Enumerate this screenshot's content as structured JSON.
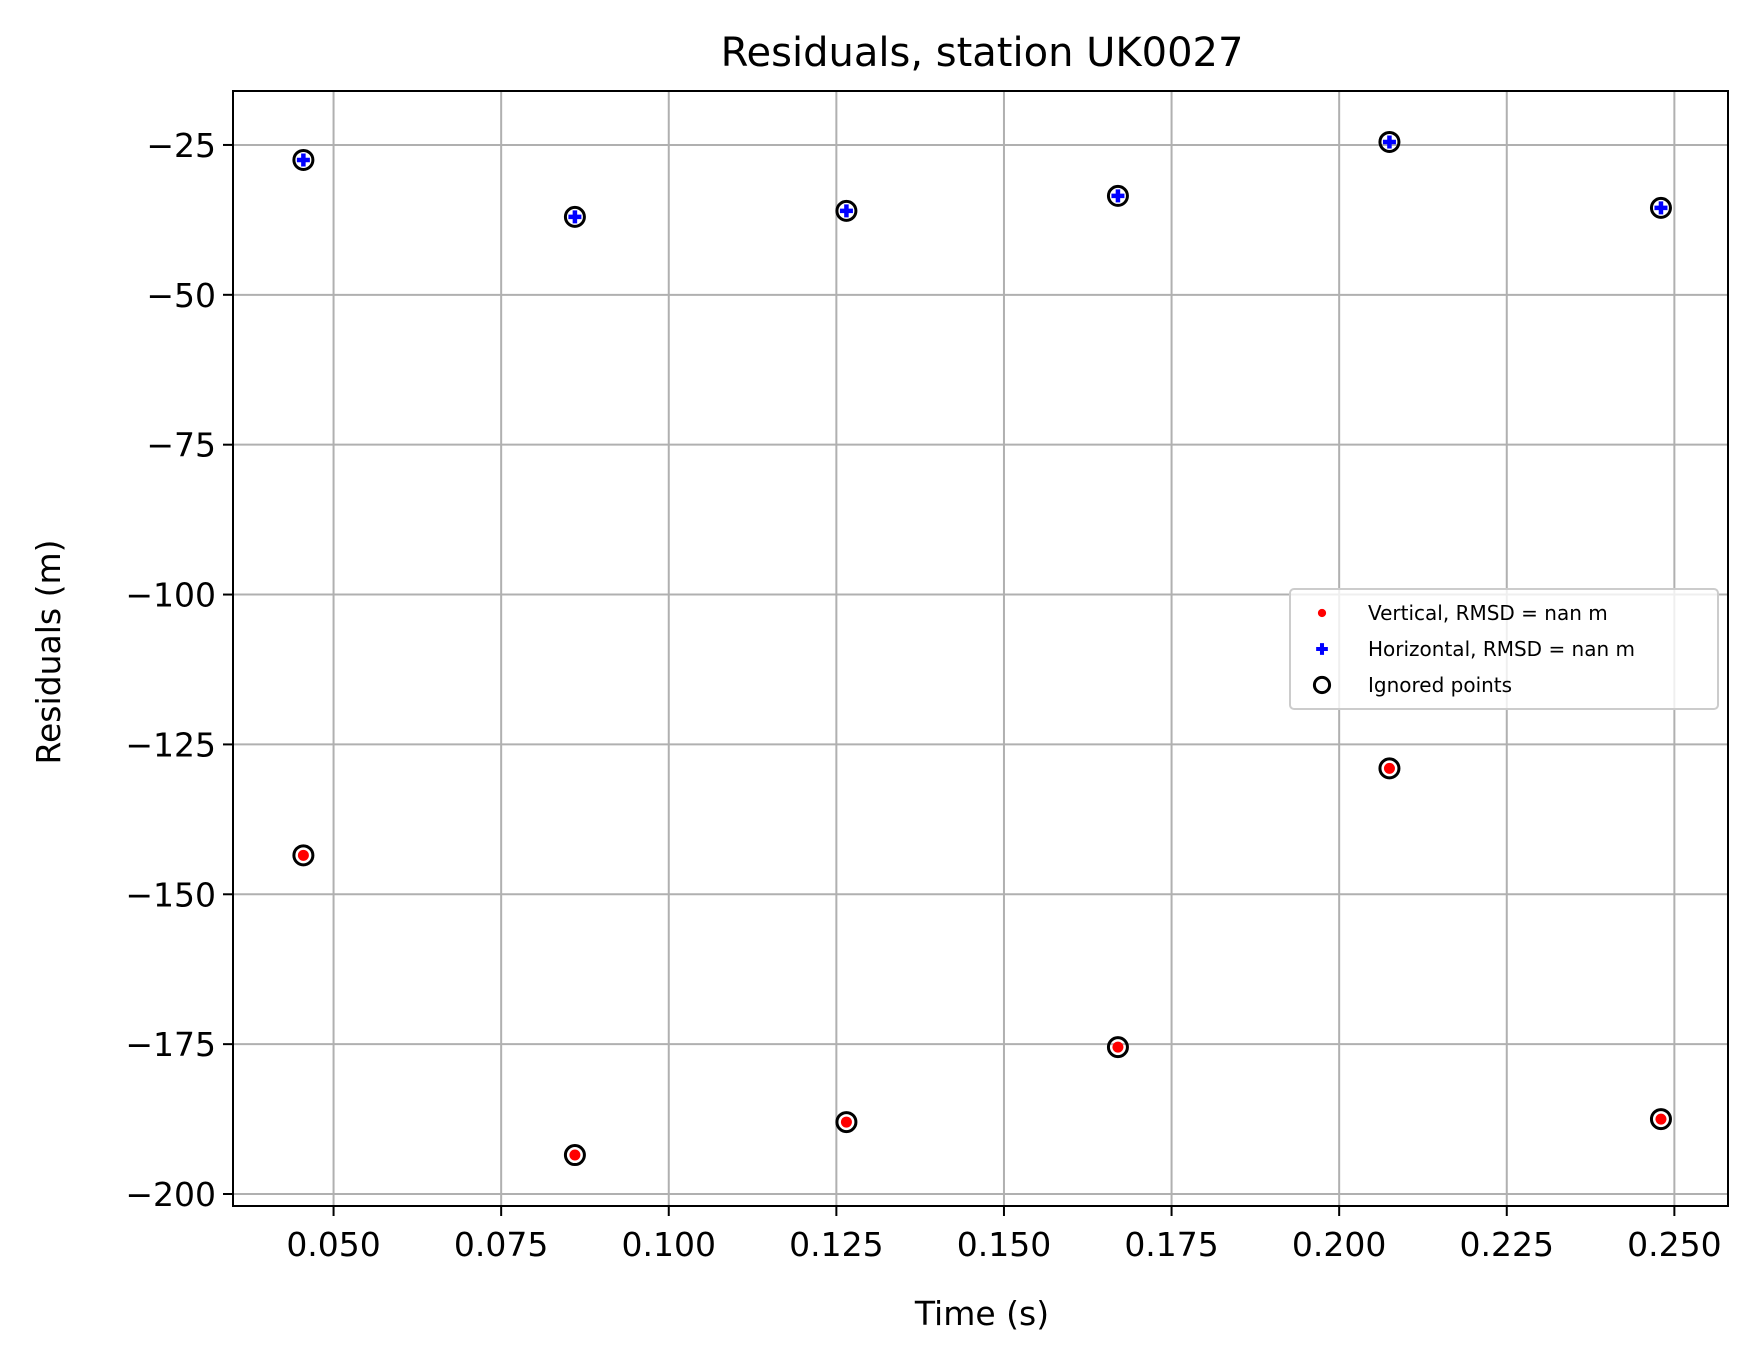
{
  "chart_data": {
    "type": "scatter",
    "title": "Residuals, station UK0027",
    "xlabel": "Time (s)",
    "ylabel": "Residuals (m)",
    "xlim": [
      0.035,
      0.258
    ],
    "ylim": [
      -202,
      -16
    ],
    "xticks": [
      0.05,
      0.075,
      0.1,
      0.125,
      0.15,
      0.175,
      0.2,
      0.225,
      0.25
    ],
    "xtick_labels": [
      "0.050",
      "0.075",
      "0.100",
      "0.125",
      "0.150",
      "0.175",
      "0.200",
      "0.225",
      "0.250"
    ],
    "yticks": [
      -25,
      -50,
      -75,
      -100,
      -125,
      -150,
      -175,
      -200
    ],
    "ytick_labels": [
      "−25",
      "−50",
      "−75",
      "−100",
      "−125",
      "−150",
      "−175",
      "−200"
    ],
    "grid": true,
    "legend_position": "center-right",
    "series": [
      {
        "name": "Vertical, RMSD = nan m",
        "marker": "dot",
        "color": "#ff0000",
        "x": [
          0.0455,
          0.086,
          0.1265,
          0.167,
          0.2075,
          0.248
        ],
        "y": [
          -143.5,
          -193.5,
          -188,
          -175.5,
          -129,
          -187.5
        ]
      },
      {
        "name": "Horizontal, RMSD = nan m",
        "marker": "plus",
        "color": "#0000ff",
        "x": [
          0.0455,
          0.086,
          0.1265,
          0.167,
          0.2075,
          0.248
        ],
        "y": [
          -27.5,
          -37,
          -36,
          -33.5,
          -24.5,
          -35.5
        ]
      },
      {
        "name": "Ignored points",
        "marker": "open-circle",
        "color": "#000000",
        "x": [
          0.0455,
          0.086,
          0.1265,
          0.167,
          0.2075,
          0.248,
          0.0455,
          0.086,
          0.1265,
          0.167,
          0.2075,
          0.248
        ],
        "y": [
          -143.5,
          -193.5,
          -188,
          -175.5,
          -129,
          -187.5,
          -27.5,
          -37,
          -36,
          -33.5,
          -24.5,
          -35.5
        ]
      }
    ]
  }
}
